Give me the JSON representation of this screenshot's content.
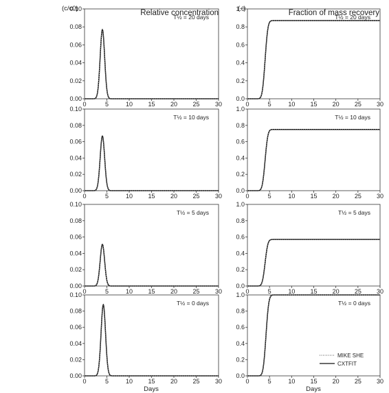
{
  "figure": {
    "left_unit": "(c/c0)",
    "right_unit": "(–)",
    "left_title": "Relative concentration",
    "right_title": "Fraction of mass recovery",
    "xlabel": "Days",
    "legend": [
      "MIKE SHE",
      "CXTFIT"
    ]
  },
  "chart_data": [
    {
      "type": "line",
      "column": "left",
      "row": 0,
      "annotation": "T½ = 20 days",
      "xlim": [
        0,
        30
      ],
      "ylim": [
        0,
        0.1
      ],
      "xticks": [
        "0",
        "5",
        "10",
        "15",
        "20",
        "25",
        "30"
      ],
      "yticks": [
        "0.00",
        "0.02",
        "0.04",
        "0.06",
        "0.08",
        "0.10"
      ],
      "peak_day": 4.0,
      "peak_value": 0.077,
      "spread": 0.5
    },
    {
      "type": "line",
      "column": "right",
      "row": 0,
      "annotation": "T½ = 20 days",
      "xlim": [
        0,
        30
      ],
      "ylim": [
        0,
        1.0
      ],
      "xticks": [
        "0",
        "5",
        "10",
        "15",
        "20",
        "25",
        "30"
      ],
      "yticks": [
        "0.0",
        "0.2",
        "0.4",
        "0.6",
        "0.8",
        "1.0"
      ],
      "center_day": 4.0,
      "plateau": 0.87,
      "spread": 0.5
    },
    {
      "type": "line",
      "column": "left",
      "row": 1,
      "annotation": "T½ = 10 days",
      "xlim": [
        0,
        30
      ],
      "ylim": [
        0,
        0.1
      ],
      "xticks": [
        "0",
        "5",
        "10",
        "15",
        "20",
        "25",
        "30"
      ],
      "yticks": [
        "0.00",
        "0.02",
        "0.04",
        "0.06",
        "0.08",
        "0.10"
      ],
      "peak_day": 4.0,
      "peak_value": 0.067,
      "spread": 0.5
    },
    {
      "type": "line",
      "column": "right",
      "row": 1,
      "annotation": "T½ = 10 days",
      "xlim": [
        0,
        30
      ],
      "ylim": [
        0,
        1.0
      ],
      "xticks": [
        "0",
        "5",
        "10",
        "15",
        "20",
        "25",
        "30"
      ],
      "yticks": [
        "0.0",
        "0.2",
        "0.4",
        "0.6",
        "0.8",
        "1.0"
      ],
      "center_day": 4.0,
      "plateau": 0.75,
      "spread": 0.5
    },
    {
      "type": "line",
      "column": "left",
      "row": 2,
      "annotation": "T½ = 5 days",
      "xlim": [
        0,
        30
      ],
      "ylim": [
        0,
        0.1
      ],
      "xticks": [
        "0",
        "5",
        "10",
        "15",
        "20",
        "25",
        "30"
      ],
      "yticks": [
        "0.00",
        "0.02",
        "0.04",
        "0.06",
        "0.08",
        "0.10"
      ],
      "peak_day": 4.0,
      "peak_value": 0.051,
      "spread": 0.5
    },
    {
      "type": "line",
      "column": "right",
      "row": 2,
      "annotation": "T½ = 5 days",
      "xlim": [
        0,
        30
      ],
      "ylim": [
        0,
        1.0
      ],
      "xticks": [
        "0",
        "5",
        "10",
        "15",
        "20",
        "25",
        "30"
      ],
      "yticks": [
        "0.0",
        "0.2",
        "0.4",
        "0.6",
        "0.8",
        "1.0"
      ],
      "center_day": 4.0,
      "plateau": 0.57,
      "spread": 0.5
    },
    {
      "type": "line",
      "column": "left",
      "row": 3,
      "annotation": "T½ = 0 days",
      "xlim": [
        0,
        30
      ],
      "ylim": [
        0,
        0.1
      ],
      "xticks": [
        "0",
        "5",
        "10",
        "15",
        "20",
        "25",
        "30"
      ],
      "yticks": [
        "0.00",
        "0.02",
        "0.04",
        "0.06",
        "0.08",
        "0.10"
      ],
      "peak_day": 4.2,
      "peak_value": 0.088,
      "spread": 0.5
    },
    {
      "type": "line",
      "column": "right",
      "row": 3,
      "annotation": "T½ = 0 days",
      "xlim": [
        0,
        30
      ],
      "ylim": [
        0,
        1.0
      ],
      "xticks": [
        "0",
        "5",
        "10",
        "15",
        "20",
        "25",
        "30"
      ],
      "yticks": [
        "0.0",
        "0.2",
        "0.4",
        "0.6",
        "0.8",
        "1.0"
      ],
      "center_day": 4.2,
      "plateau": 1.0,
      "spread": 0.5,
      "show_legend": true
    }
  ]
}
